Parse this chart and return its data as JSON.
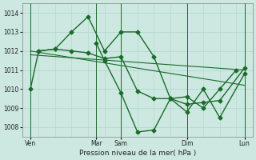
{
  "background_color": "#cce8e0",
  "grid_color": "#b0d4cc",
  "line_color": "#1a6b2a",
  "xlabel": "Pression niveau de la mer( hPa )",
  "ylim": [
    1007.5,
    1014.5
  ],
  "yticks": [
    1008,
    1009,
    1010,
    1011,
    1012,
    1013,
    1014
  ],
  "xlim": [
    0,
    14
  ],
  "x_tick_labels": [
    "Ven",
    "Mar",
    "Sam",
    "Dim",
    "Lun"
  ],
  "x_tick_positions": [
    0.5,
    4.5,
    6.0,
    10.0,
    13.5
  ],
  "vline_positions": [
    0.5,
    4.5,
    6.0,
    10.0,
    13.5
  ],
  "series": [
    {
      "x": [
        1,
        2,
        3,
        4,
        5,
        6,
        7,
        8,
        9,
        10,
        11,
        12,
        13
      ],
      "y": [
        1012.0,
        1012.1,
        1013.0,
        1013.8,
        1012.0,
        1013.0,
        1013.0,
        1011.7,
        1009.5,
        1009.6,
        1009.0,
        1010.0,
        1011.0
      ],
      "marker": "D",
      "markersize": 2.5,
      "linewidth": 1.0
    },
    {
      "x": [
        0.5,
        1,
        2,
        3,
        4,
        5,
        6,
        7,
        8,
        9,
        10,
        11,
        12,
        13.5
      ],
      "y": [
        1010.0,
        1012.0,
        1012.1,
        1012.0,
        1011.9,
        1011.6,
        1011.7,
        1009.9,
        1009.5,
        1009.5,
        1009.2,
        1009.3,
        1009.4,
        1011.1
      ],
      "marker": "D",
      "markersize": 2.5,
      "linewidth": 1.0
    },
    {
      "x": [
        0.5,
        13.5
      ],
      "y": [
        1011.8,
        1011.0
      ],
      "marker": null,
      "markersize": 0,
      "linewidth": 0.8
    },
    {
      "x": [
        0.5,
        13.5
      ],
      "y": [
        1012.0,
        1010.2
      ],
      "marker": null,
      "markersize": 0,
      "linewidth": 0.8
    },
    {
      "x": [
        4.5,
        5,
        6,
        7,
        8,
        9,
        10,
        11,
        12,
        13.5
      ],
      "y": [
        1012.4,
        1011.5,
        1009.8,
        1007.75,
        1007.85,
        1009.5,
        1008.8,
        1010.0,
        1008.5,
        1010.8
      ],
      "marker": "D",
      "markersize": 2.5,
      "linewidth": 1.0
    }
  ]
}
